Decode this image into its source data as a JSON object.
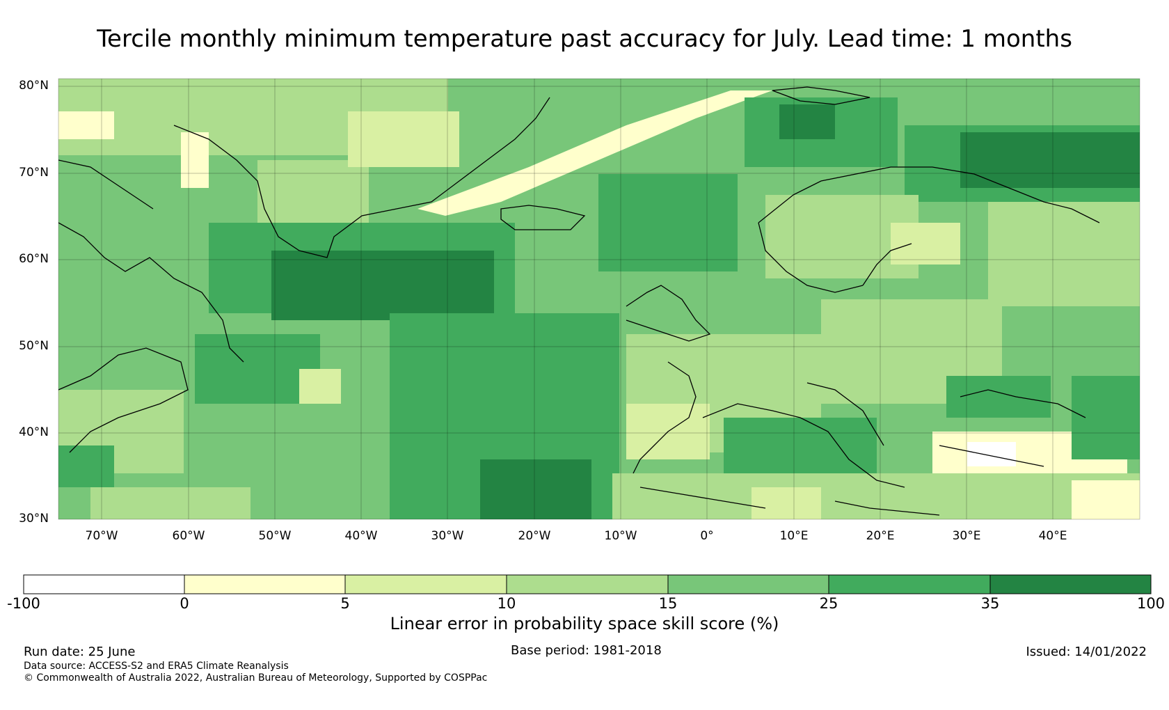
{
  "title": "Tercile monthly minimum temperature past accuracy for July. Lead time: 1 months",
  "map": {
    "lat_labels": [
      "80°N",
      "70°N",
      "60°N",
      "50°N",
      "40°N",
      "30°N"
    ],
    "lat_values": [
      80,
      70,
      60,
      50,
      40,
      30
    ],
    "lon_labels": [
      "70°W",
      "60°W",
      "50°W",
      "40°W",
      "30°W",
      "20°W",
      "10°W",
      "0°",
      "10°E",
      "20°E",
      "30°E",
      "40°E"
    ],
    "lon_values": [
      -70,
      -60,
      -50,
      -40,
      -30,
      -20,
      -10,
      0,
      10,
      20,
      30,
      40
    ],
    "extent": {
      "lon_min": -75,
      "lon_max": 50,
      "lat_min": 30,
      "lat_max": 81
    }
  },
  "colorbar": {
    "label": "Linear error in probability space skill score (%)",
    "ticks": [
      "-100",
      "0",
      "5",
      "10",
      "15",
      "25",
      "35",
      "100"
    ],
    "colors": [
      "#ffffff",
      "#ffffcc",
      "#d9f0a3",
      "#addd8e",
      "#78c679",
      "#41ab5d",
      "#238443"
    ]
  },
  "footer": {
    "run_date": "Run date: 25 June",
    "base_period": "Base period: 1981-2018",
    "issued": "Issued: 14/01/2022",
    "data_source": "Data source: ACCESS-S2 and ERA5 Climate Reanalysis",
    "copyright": "© Commonwealth of Australia 2022, Australian Bureau of Meteorology, Supported by COSPPac"
  }
}
